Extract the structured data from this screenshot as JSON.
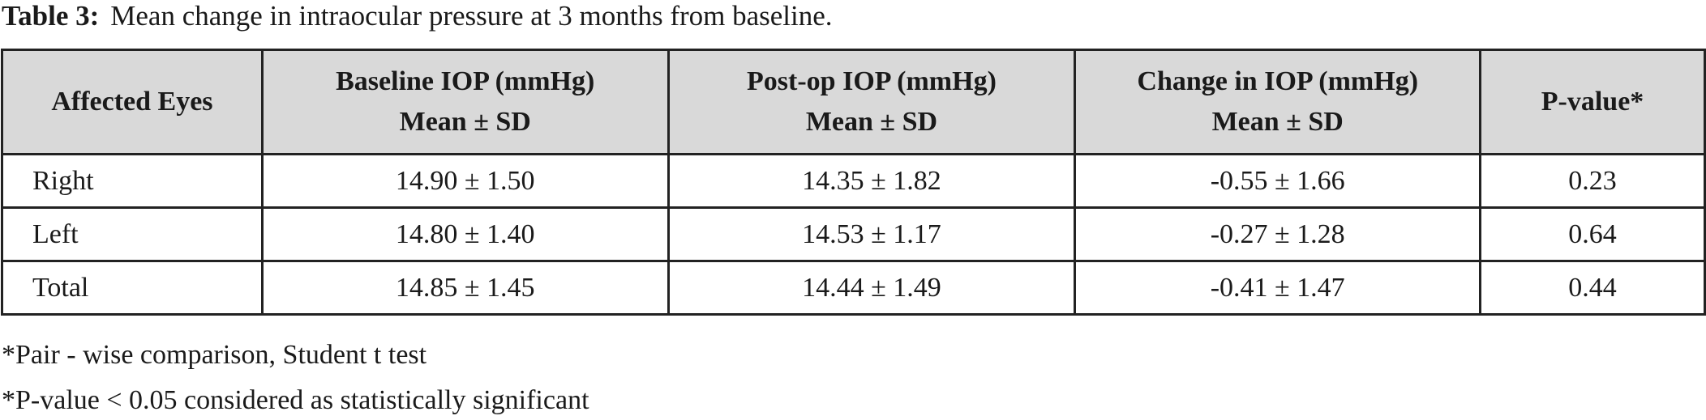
{
  "title": {
    "label": "Table 3:",
    "text": "Mean change in intraocular pressure at 3 months from baseline."
  },
  "table": {
    "columns": [
      [
        "Affected Eyes"
      ],
      [
        "Baseline IOP (mmHg)",
        "Mean ± SD"
      ],
      [
        "Post-op IOP (mmHg)",
        "Mean ± SD"
      ],
      [
        "Change in IOP (mmHg)",
        "Mean ± SD"
      ],
      [
        "P-value*"
      ]
    ],
    "rows": [
      [
        "Right",
        "14.90 ± 1.50",
        "14.35 ± 1.82",
        "-0.55 ± 1.66",
        "0.23"
      ],
      [
        "Left",
        "14.80 ± 1.40",
        "14.53 ± 1.17",
        "-0.27 ± 1.28",
        "0.64"
      ],
      [
        "Total",
        "14.85 ± 1.45",
        "14.44 ± 1.49",
        "-0.41 ± 1.47",
        "0.44"
      ]
    ]
  },
  "footnotes": [
    "*Pair - wise comparison, Student t test",
    "*P-value < 0.05 considered as statistically significant"
  ]
}
